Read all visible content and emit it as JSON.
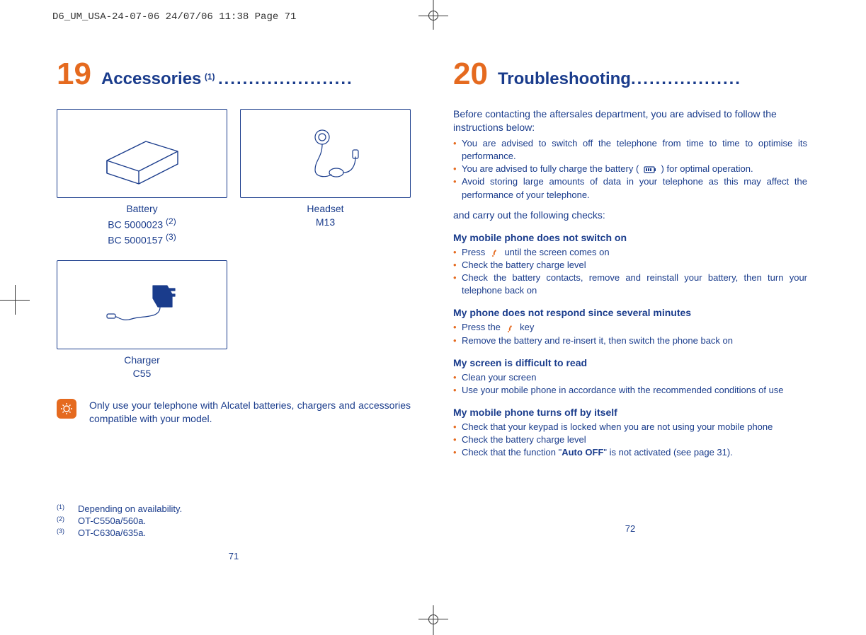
{
  "colors": {
    "orange": "#e56a1f",
    "blue": "#1a3c8c",
    "black": "#333333",
    "white": "#ffffff"
  },
  "crop_header": "D6_UM_USA-24-07-06  24/07/06  11:38  Page 71",
  "left": {
    "chapter_num": "19",
    "chapter_title": "Accessories",
    "chapter_title_sup": "(1)",
    "dots": "......................",
    "accessories": {
      "battery": {
        "label_line1": "Battery",
        "label_line2": "BC 5000023",
        "label_line2_sup": "(2)",
        "label_line3": "BC 5000157",
        "label_line3_sup": "(3)"
      },
      "headset": {
        "label_line1": "Headset",
        "label_line2": "M13"
      },
      "charger": {
        "label_line1": "Charger",
        "label_line2": "C55"
      }
    },
    "tip": "Only use your telephone with Alcatel batteries, chargers and accessories compatible with your model.",
    "footnotes": [
      {
        "marker": "(1)",
        "text": "Depending on availability."
      },
      {
        "marker": "(2)",
        "text": "OT-C550a/560a."
      },
      {
        "marker": "(3)",
        "text": "OT-C630a/635a."
      }
    ],
    "page_num": "71"
  },
  "right": {
    "chapter_num": "20",
    "chapter_title": "Troubleshooting",
    "dots": "..................",
    "intro": "Before contacting the aftersales department, you are advised to follow the instructions below:",
    "intro_bullets": [
      "You are advised to switch off the telephone from time to time to optimise its performance.",
      "You are advised to fully charge the battery ( 🔋 ) for optimal operation.",
      "Avoid storing large amounts of data in your telephone as this may affect the performance of your telephone."
    ],
    "checks_intro": "and carry out the following checks:",
    "sections": [
      {
        "title": "My mobile phone does not switch on",
        "items": [
          {
            "pre": "Press ",
            "icon": "power",
            "post": " until the screen comes on"
          },
          {
            "text": "Check the battery charge level"
          },
          {
            "text": "Check the battery contacts, remove and reinstall your battery, then turn your telephone back on"
          }
        ]
      },
      {
        "title": "My phone does not respond since several minutes",
        "items": [
          {
            "pre": "Press the ",
            "icon": "power",
            "post": " key"
          },
          {
            "text": "Remove the battery and re-insert it, then switch the phone back on"
          }
        ]
      },
      {
        "title": "My screen is difficult to read",
        "items": [
          {
            "text": "Clean your screen"
          },
          {
            "text": "Use your mobile phone in accordance with the recommended conditions of use"
          }
        ]
      },
      {
        "title": "My mobile phone turns off by itself",
        "items": [
          {
            "text": "Check that your keypad is locked when you are not using your mobile phone"
          },
          {
            "text": "Check the battery charge level"
          },
          {
            "pre": "Check that the function \"",
            "bold": "Auto OFF",
            "post": "\" is not activated (see page 31)."
          }
        ]
      }
    ],
    "page_num": "72"
  }
}
